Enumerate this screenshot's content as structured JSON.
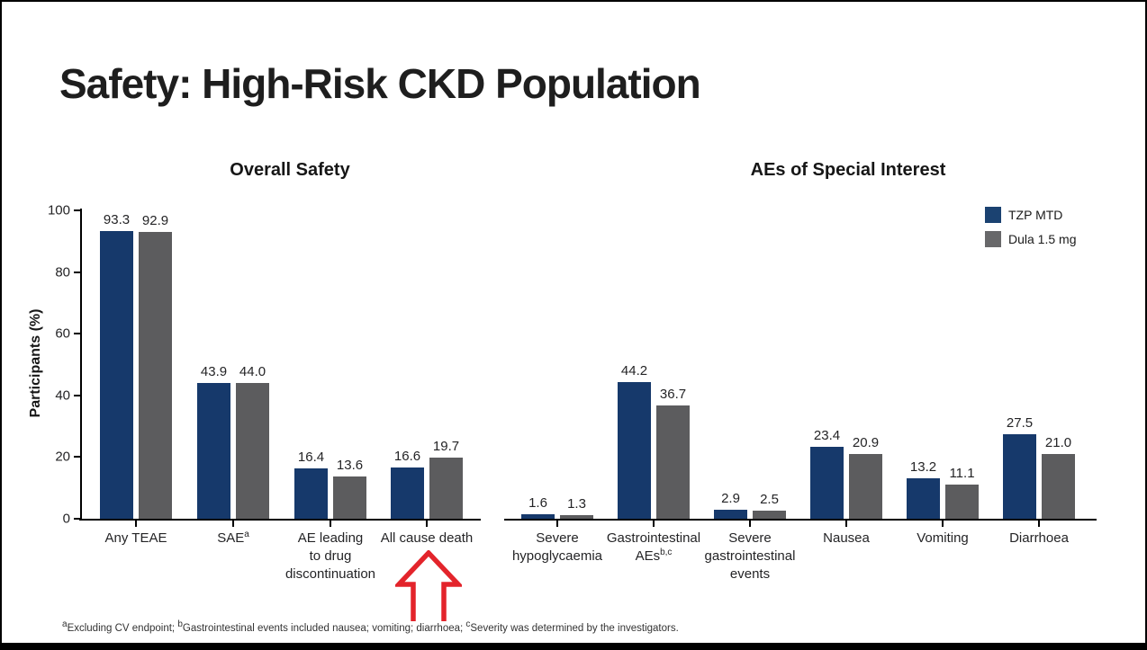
{
  "slide": {
    "title": "Safety: High-Risk CKD Population",
    "footnote": [
      {
        "sup": "a",
        "text": "Excluding CV endpoint; "
      },
      {
        "sup": "b",
        "text": "Gastrointestinal events included nausea; vomiting; diarrhoea; "
      },
      {
        "sup": "c",
        "text": "Severity was determined by the investigators."
      }
    ]
  },
  "colors": {
    "series_colors": [
      "#16396B",
      "#5C5C5E"
    ],
    "axis": "#000000",
    "arrow_red": "#E3242B",
    "title_text": "#1E1E1E"
  },
  "legend": {
    "items": [
      {
        "label": "TZP MTD",
        "color": "#1B4271"
      },
      {
        "label": "Dula 1.5 mg",
        "color": "#68686A"
      }
    ]
  },
  "chart_data": [
    {
      "type": "bar",
      "title": "Overall Safety",
      "ylabel": "Participants (%)",
      "xlabel": "",
      "ylim": [
        0,
        100
      ],
      "yticks": [
        0,
        20,
        40,
        60,
        80,
        100
      ],
      "grid": false,
      "legend_position": "none",
      "categories": [
        [
          "Any TEAE"
        ],
        [
          "SAE^a"
        ],
        [
          "AE leading",
          "to drug",
          "discontinuation"
        ],
        [
          "All cause death"
        ]
      ],
      "series": [
        {
          "name": "TZP MTD",
          "values": [
            93.3,
            43.9,
            16.4,
            16.6
          ]
        },
        {
          "name": "Dula 1.5 mg",
          "values": [
            92.9,
            44.0,
            13.6,
            19.7
          ]
        }
      ]
    },
    {
      "type": "bar",
      "title": "AEs of Special Interest",
      "ylabel": "",
      "xlabel": "",
      "ylim": [
        0,
        100
      ],
      "yticks": [],
      "grid": false,
      "legend_position": "top-right",
      "categories": [
        [
          "Severe",
          "hypoglycaemia"
        ],
        [
          "Gastrointestinal",
          "AEs^b,c"
        ],
        [
          "Severe",
          "gastrointestinal",
          "events"
        ],
        [
          "Nausea"
        ],
        [
          "Vomiting"
        ],
        [
          "Diarrhoea"
        ]
      ],
      "series": [
        {
          "name": "TZP MTD",
          "values": [
            1.6,
            44.2,
            2.9,
            23.4,
            13.2,
            27.5
          ]
        },
        {
          "name": "Dula 1.5 mg",
          "values": [
            1.3,
            36.7,
            2.5,
            20.9,
            11.1,
            21.0
          ]
        }
      ]
    }
  ],
  "annotations": {
    "red_arrow": {
      "points_to": "All cause death",
      "color": "#E3242B"
    }
  }
}
